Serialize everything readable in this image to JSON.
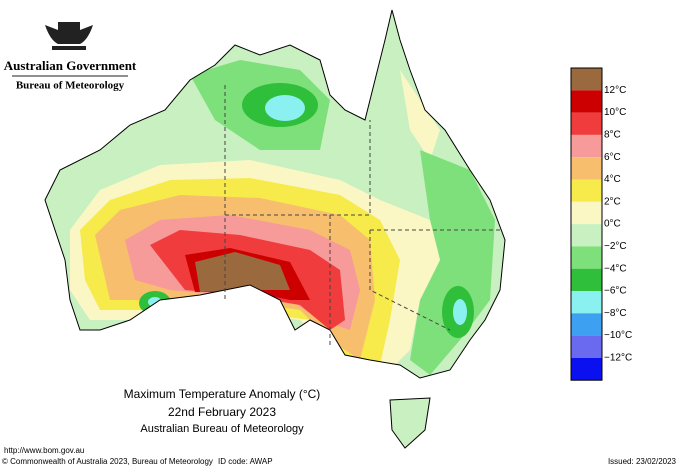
{
  "header": {
    "government": "Australian Government",
    "agency": "Bureau of Meteorology"
  },
  "map": {
    "title": "Maximum Temperature Anomaly (°C)",
    "date": "22nd February 2023",
    "source": "Australian Bureau of Meteorology"
  },
  "legend": {
    "colors": [
      "#9a6a3e",
      "#cc0000",
      "#f03c3c",
      "#f79a9a",
      "#f7be6e",
      "#f7ea4b",
      "#fbf7c5",
      "#c8f0c0",
      "#7ee07a",
      "#2fbf3a",
      "#8af0f0",
      "#3ea0f0",
      "#6a6af0",
      "#0a10f0"
    ],
    "labels": [
      "12°C",
      "10°C",
      "8°C",
      "6°C",
      "4°C",
      "2°C",
      "0°C",
      "−2°C",
      "−4°C",
      "−6°C",
      "−8°C",
      "−10°C",
      "−12°C"
    ]
  },
  "footer": {
    "url": "http://www.bom.gov.au",
    "copyright": "© Commonwealth of Australia 2023, Bureau of Meteorology",
    "id_code": "ID code: AWAP",
    "issued": "Issued: 23/02/2023"
  }
}
